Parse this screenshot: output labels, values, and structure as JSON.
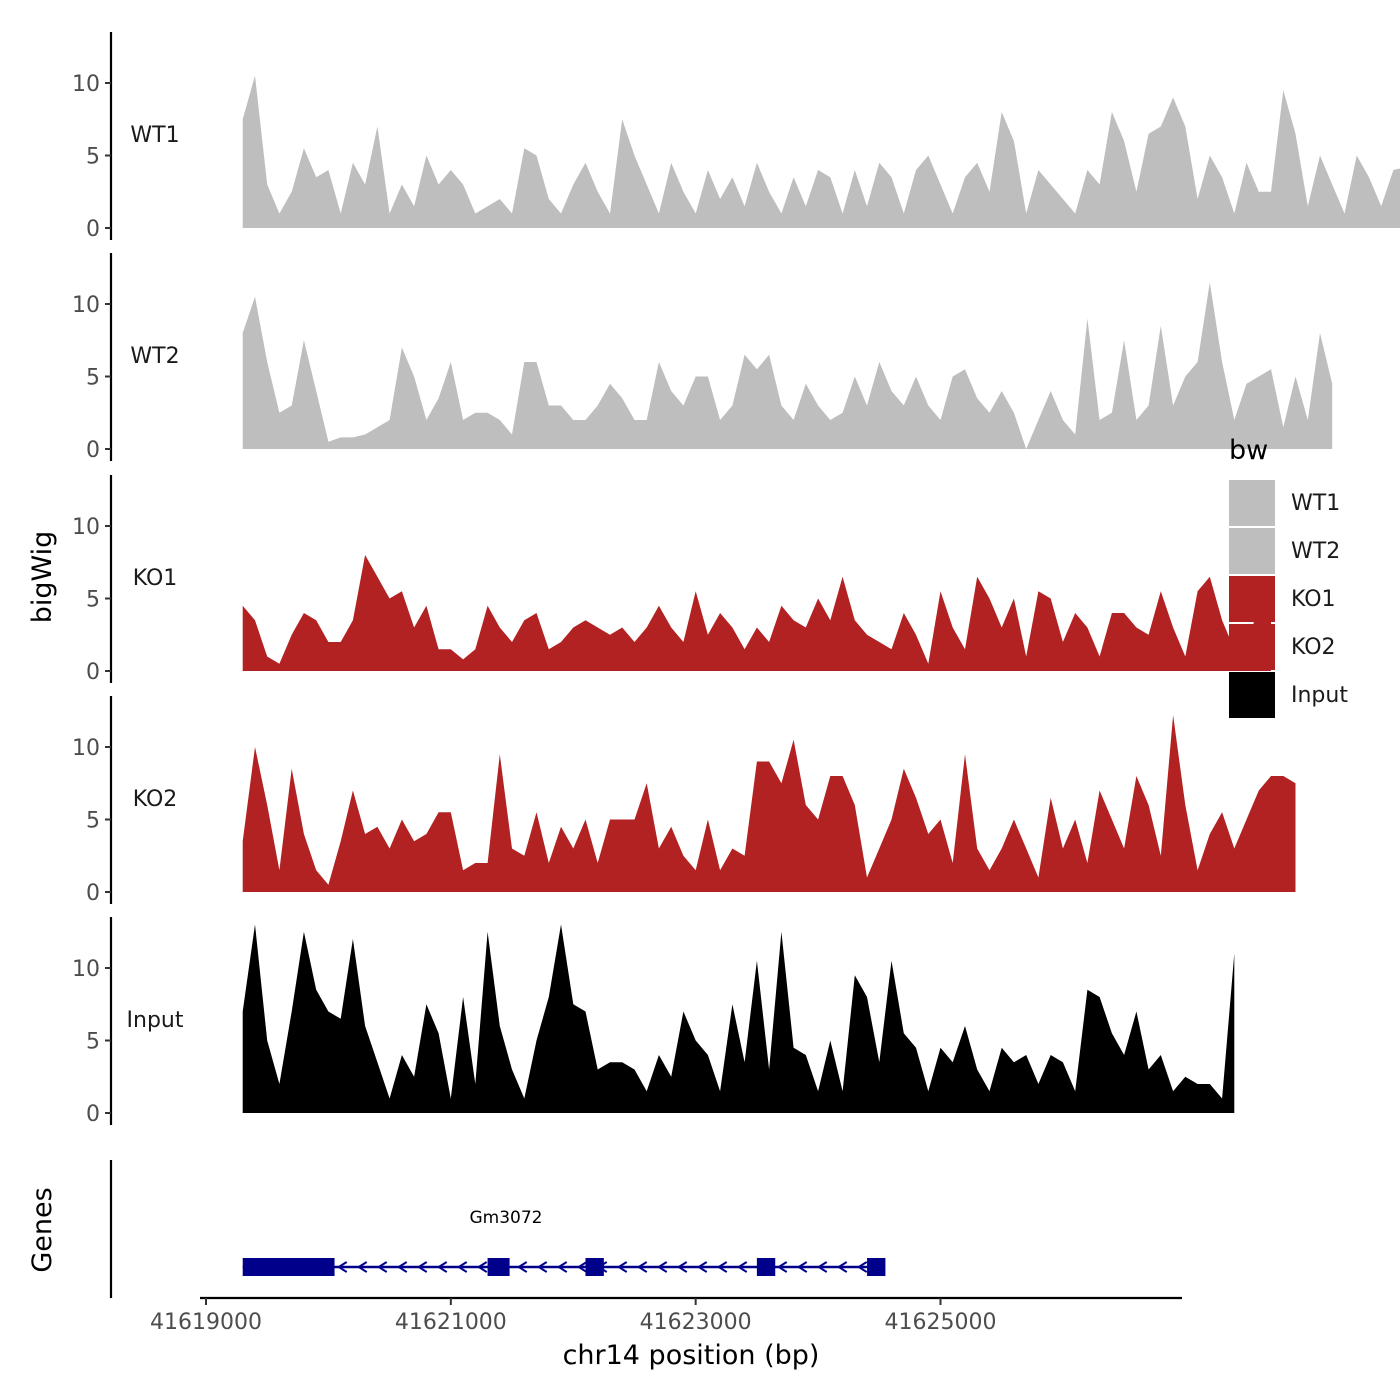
{
  "chart_data": {
    "type": "area",
    "title": "",
    "xlabel": "chr14 position (bp)",
    "ylabel": "bigWig",
    "genes_label": "Genes",
    "xlim": [
      41619000,
      41626800
    ],
    "ylim": [
      0,
      14
    ],
    "x_ticks": [
      41619000,
      41621000,
      41623000,
      41625000
    ],
    "x_tick_labels": [
      "41619000",
      "41621000",
      "41623000",
      "41625000"
    ],
    "y_ticks": [
      0,
      5,
      10
    ],
    "y_tick_labels": [
      "0",
      "5",
      "10"
    ],
    "x_start": 41619300,
    "x_step": 100,
    "legend": {
      "title": "bw",
      "items": [
        {
          "label": "WT1",
          "color": "#BEBEBE"
        },
        {
          "label": "WT2",
          "color": "#BEBEBE"
        },
        {
          "label": "KO1",
          "color": "#B22222"
        },
        {
          "label": "KO2",
          "color": "#B22222"
        },
        {
          "label": "Input",
          "color": "#000000"
        }
      ]
    },
    "series": [
      {
        "name": "WT1",
        "color": "#BEBEBE",
        "values": [
          7.5,
          10.5,
          3,
          1,
          2.5,
          5.5,
          3.5,
          4,
          1,
          4.5,
          3,
          7,
          1,
          3,
          1.5,
          5,
          3,
          4,
          3,
          1,
          1.5,
          2,
          1,
          5.5,
          5,
          2,
          1,
          3,
          4.5,
          2.5,
          1,
          7.5,
          5,
          3,
          1,
          4.5,
          2.5,
          1,
          4,
          2,
          3.5,
          1.5,
          4.5,
          2.5,
          1,
          3.5,
          1.5,
          4,
          3.5,
          1,
          4,
          1.5,
          4.5,
          3.5,
          1,
          4,
          5,
          3,
          1,
          3.5,
          4.5,
          2.5,
          8,
          6,
          1,
          4,
          3,
          2,
          1,
          4,
          3,
          8,
          6,
          2.5,
          6.5,
          7,
          9,
          7,
          2,
          5,
          3.5,
          1,
          4.5,
          2.5,
          2.5,
          9.5,
          6.5,
          1.5,
          5,
          3,
          1,
          5,
          3.5,
          1.5,
          4,
          4.2
        ]
      },
      {
        "name": "WT2",
        "color": "#BEBEBE",
        "values": [
          8,
          10.5,
          6,
          2.5,
          3,
          7.5,
          4,
          0.5,
          0.8,
          0.8,
          1,
          1.5,
          2,
          7,
          5,
          2,
          3.5,
          6,
          2,
          2.5,
          2.5,
          2,
          1,
          6,
          6,
          3,
          3,
          2,
          2,
          3,
          4.5,
          3.5,
          2,
          2,
          6,
          4,
          3,
          5,
          5,
          2,
          3,
          6.5,
          5.5,
          6.5,
          3,
          2,
          4.5,
          3,
          2,
          2.5,
          5,
          3,
          6,
          4,
          3,
          5,
          3,
          2,
          5,
          5.5,
          3.5,
          2.5,
          4,
          2.5,
          0,
          2,
          4,
          2,
          1,
          9,
          2,
          2.5,
          7.5,
          2,
          3,
          8.5,
          3,
          5,
          6,
          11.5,
          6,
          2,
          4.5,
          5,
          5.5,
          1.5,
          5,
          2,
          8,
          4.5
        ]
      },
      {
        "name": "KO1",
        "color": "#B22222",
        "values": [
          4.5,
          3.5,
          1,
          0.5,
          2.5,
          4,
          3.5,
          2,
          2,
          3.5,
          8,
          6.5,
          5,
          5.5,
          3,
          4.5,
          1.5,
          1.5,
          0.8,
          1.5,
          4.5,
          3,
          2,
          3.5,
          4,
          1.5,
          2,
          3,
          3.5,
          3,
          2.5,
          3,
          2,
          3,
          4.5,
          3,
          2,
          5.5,
          2.5,
          4,
          3,
          1.5,
          3,
          2,
          4.5,
          3.5,
          3,
          5,
          3.5,
          6.5,
          3.5,
          2.5,
          2,
          1.5,
          4,
          2.5,
          0.5,
          5.5,
          3,
          1.5,
          6.5,
          5,
          3,
          5,
          1,
          5.5,
          5,
          2,
          4,
          3,
          1,
          4,
          4,
          3,
          2.5,
          5.5,
          3,
          1,
          5.5,
          6.5,
          3.5,
          1.5,
          1,
          5,
          5
        ]
      },
      {
        "name": "KO2",
        "color": "#B22222",
        "values": [
          3.5,
          10,
          6,
          1.5,
          8.5,
          4,
          1.5,
          0.5,
          3.5,
          7,
          4,
          4.5,
          3,
          5,
          3.5,
          4,
          5.5,
          5.5,
          1.5,
          2,
          2,
          9.5,
          3,
          2.5,
          5.5,
          2,
          4.5,
          3,
          5,
          2,
          5,
          5,
          5,
          7.5,
          3,
          4.5,
          2.5,
          1.5,
          5,
          1.5,
          3,
          2.5,
          9,
          9,
          7.5,
          10.5,
          6,
          5,
          8,
          8,
          6,
          1,
          3,
          5,
          8.5,
          6.5,
          4,
          5,
          2,
          9.5,
          3,
          1.5,
          3,
          5,
          3,
          1,
          6.5,
          3,
          5,
          2,
          7,
          5,
          3,
          8,
          6,
          2.5,
          12.2,
          6,
          1.5,
          4,
          5.5,
          3,
          5,
          7,
          8,
          8,
          7.5
        ]
      },
      {
        "name": "Input",
        "color": "#000000",
        "values": [
          7,
          13,
          5,
          2,
          7,
          12.5,
          8.5,
          7,
          6.5,
          12,
          6,
          3.5,
          1,
          4,
          2.5,
          7.5,
          5.5,
          1,
          8,
          2,
          12.5,
          6,
          3,
          1,
          5,
          8,
          13,
          7.5,
          7,
          3,
          3.5,
          3.5,
          3,
          1.5,
          4,
          2.5,
          7,
          5,
          4,
          1.5,
          7.5,
          3.5,
          10.5,
          3,
          12.5,
          4.5,
          4,
          1.5,
          5,
          1.5,
          9.5,
          8,
          3.5,
          10.5,
          5.5,
          4.5,
          1.5,
          4.5,
          3.5,
          6,
          3,
          1.5,
          4.5,
          3.5,
          4,
          2,
          4,
          3.5,
          1.5,
          8.5,
          8,
          5.5,
          4,
          7,
          3,
          4,
          1.5,
          2.5,
          2,
          2,
          1,
          11
        ]
      }
    ],
    "genes": [
      {
        "name": "Gm3072",
        "strand": "-",
        "start": 41619300,
        "end": 41624500,
        "exons": [
          [
            41619300,
            41620050
          ],
          [
            41621300,
            41621480
          ],
          [
            41622100,
            41622250
          ],
          [
            41623500,
            41623650
          ],
          [
            41624400,
            41624550
          ]
        ]
      }
    ]
  }
}
